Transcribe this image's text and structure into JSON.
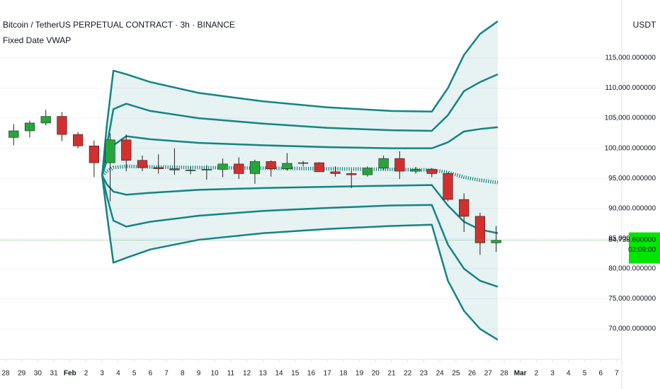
{
  "chart_data": {
    "type": "candlestick",
    "title": "Bitcoin / TetherUS PERPETUAL CONTRACT · 3h · BINANCE",
    "subtitle": "Fixed Date VWAP",
    "currency": "USDT",
    "up_color": "#26a63a",
    "down_color": "#d32f2f",
    "band_color": "#138484",
    "grid": true,
    "xlim": [
      -0.35,
      38.31
    ],
    "ylim": [
      67070,
      124630
    ],
    "xticks": [
      {
        "value": 0,
        "label": "28"
      },
      {
        "value": 1,
        "label": "29"
      },
      {
        "value": 2,
        "label": "30"
      },
      {
        "value": 3,
        "label": "31"
      },
      {
        "value": 4,
        "label": "Feb"
      },
      {
        "value": 5,
        "label": "2"
      },
      {
        "value": 6,
        "label": "3"
      },
      {
        "value": 7,
        "label": "4"
      },
      {
        "value": 8,
        "label": "5"
      },
      {
        "value": 9,
        "label": "6"
      },
      {
        "value": 10,
        "label": "7"
      },
      {
        "value": 11,
        "label": "8"
      },
      {
        "value": 12,
        "label": "9"
      },
      {
        "value": 13,
        "label": "10"
      },
      {
        "value": 14,
        "label": "11"
      },
      {
        "value": 15,
        "label": "12"
      },
      {
        "value": 16,
        "label": "13"
      },
      {
        "value": 17,
        "label": "14"
      },
      {
        "value": 18,
        "label": "15"
      },
      {
        "value": 19,
        "label": "16"
      },
      {
        "value": 20,
        "label": "17"
      },
      {
        "value": 21,
        "label": "18"
      },
      {
        "value": 22,
        "label": "19"
      },
      {
        "value": 23,
        "label": "20"
      },
      {
        "value": 24,
        "label": "21"
      },
      {
        "value": 25,
        "label": "22"
      },
      {
        "value": 26,
        "label": "23"
      },
      {
        "value": 27,
        "label": "24"
      },
      {
        "value": 28,
        "label": "25"
      },
      {
        "value": 29,
        "label": "26"
      },
      {
        "value": 30,
        "label": "27"
      },
      {
        "value": 31,
        "label": "28"
      },
      {
        "value": 32,
        "label": "Mar"
      },
      {
        "value": 33,
        "label": "2"
      },
      {
        "value": 34,
        "label": "3"
      },
      {
        "value": 35,
        "label": "4"
      },
      {
        "value": 36,
        "label": "5"
      },
      {
        "value": 37,
        "label": "6"
      },
      {
        "value": 38,
        "label": "7"
      }
    ],
    "yticks": [
      {
        "value": 70000,
        "label": "70,000.000000"
      },
      {
        "value": 75000,
        "label": "75,000.000000"
      },
      {
        "value": 80000,
        "label": "80,000.000000"
      },
      {
        "value": 85000,
        "label": "85,000.000000"
      },
      {
        "value": 90000,
        "label": "90,000.000000"
      },
      {
        "value": 95000,
        "label": "95,000.000000"
      },
      {
        "value": 100000,
        "label": "100,000.000000"
      },
      {
        "value": 105000,
        "label": "105,000.000000"
      },
      {
        "value": 110000,
        "label": "110,000.000000"
      },
      {
        "value": 115000,
        "label": "115,000.000000"
      }
    ],
    "last_price": {
      "value": 84738.6,
      "label": "84,738.600000"
    },
    "countdown": "02:09:00",
    "candles": {
      "x": [
        0.5,
        1.5,
        2.5,
        3.5,
        4.5,
        5.5,
        6.5,
        7.5,
        8.5,
        9.5,
        10.5,
        11.5,
        12.5,
        13.5,
        14.5,
        15.5,
        16.5,
        17.5,
        18.5,
        19.5,
        20.5,
        21.5,
        22.5,
        23.5,
        24.5,
        25.5,
        26.5,
        27.5,
        28.5,
        29.5,
        30.5
      ],
      "open": [
        101800,
        102900,
        104200,
        105300,
        102300,
        100400,
        97600,
        101400,
        98000,
        96800,
        96600,
        96400,
        96400,
        96500,
        97400,
        95800,
        97800,
        96600,
        97500,
        97600,
        96100,
        95800,
        95600,
        96700,
        98300,
        96200,
        96500,
        95800,
        91500,
        88700,
        84300
      ],
      "high": [
        104000,
        104600,
        106400,
        106000,
        102700,
        101300,
        102500,
        102300,
        98800,
        99000,
        100000,
        96900,
        97200,
        98300,
        98500,
        98100,
        98000,
        99200,
        97900,
        97700,
        97000,
        96300,
        97000,
        98800,
        99500,
        96900,
        96700,
        96000,
        92500,
        89300,
        87100
      ],
      "low": [
        100500,
        101800,
        103800,
        101200,
        100000,
        95200,
        91200,
        96200,
        96200,
        95800,
        95600,
        95700,
        94800,
        95200,
        94900,
        94100,
        95300,
        96300,
        97000,
        96100,
        95300,
        93400,
        95300,
        96400,
        94900,
        95800,
        95200,
        91200,
        86100,
        82300,
        82800
      ],
      "close": [
        102900,
        104200,
        105300,
        102300,
        100400,
        97600,
        101400,
        98000,
        96800,
        96600,
        96400,
        96400,
        96500,
        97400,
        95800,
        97800,
        96600,
        97500,
        97600,
        96100,
        95800,
        95600,
        96700,
        98300,
        96200,
        96500,
        95800,
        91500,
        88700,
        84300,
        84738.6
      ]
    },
    "series": [
      {
        "x": [
          6.0,
          6.3,
          6.7,
          7.5,
          9,
          12,
          16,
          20,
          24,
          26.5,
          27.5,
          28.5,
          29.5,
          30.6
        ],
        "values": [
          95500,
          104000,
          112900,
          112300,
          111000,
          109200,
          107800,
          106800,
          106200,
          106100,
          110000,
          115500,
          119000,
          121100
        ]
      },
      {
        "x": [
          6.0,
          6.3,
          6.7,
          7.5,
          9,
          12,
          16,
          20,
          24,
          26.5,
          27.5,
          28.5,
          29.5,
          30.6
        ],
        "values": [
          95500,
          100500,
          106500,
          107400,
          106200,
          105000,
          104100,
          103400,
          103000,
          102900,
          105500,
          109500,
          111000,
          112300
        ]
      },
      {
        "x": [
          6.0,
          6.3,
          6.7,
          7.5,
          9,
          12,
          16,
          20,
          24,
          26.5,
          27.5,
          28.5,
          29.5,
          30.6
        ],
        "values": [
          95500,
          98000,
          100500,
          102000,
          101500,
          100900,
          100500,
          100200,
          100000,
          100000,
          101000,
          102800,
          103200,
          103500
        ]
      },
      {
        "x": [
          6.0,
          6.3,
          6.7,
          7.5,
          9,
          12,
          16,
          20,
          24,
          26.5,
          27.5,
          28.5,
          29.5,
          30.6
        ],
        "values": [
          95500,
          96200,
          96800,
          97000,
          96900,
          96800,
          96700,
          96600,
          96500,
          96400,
          96000,
          95200,
          94700,
          94300
        ],
        "dotted": true
      },
      {
        "x": [
          6.0,
          6.3,
          6.7,
          7.5,
          9,
          12,
          16,
          20,
          24,
          26.5,
          27.5,
          28.5,
          29.5,
          30.6
        ],
        "values": [
          95500,
          94000,
          92800,
          92300,
          92600,
          93100,
          93400,
          93600,
          93800,
          93900,
          90500,
          87800,
          86500,
          85900
        ]
      },
      {
        "x": [
          6.0,
          6.3,
          6.7,
          7.5,
          9,
          12,
          16,
          20,
          24,
          26.5,
          27.5,
          28.5,
          29.5,
          30.6
        ],
        "values": [
          95500,
          92000,
          88000,
          87000,
          87800,
          88800,
          89600,
          90100,
          90500,
          90600,
          84000,
          80000,
          78000,
          77000
        ]
      },
      {
        "x": [
          6.0,
          6.3,
          6.7,
          7.5,
          9,
          12,
          16,
          20,
          24,
          26.5,
          27.5,
          28.5,
          29.5,
          30.6
        ],
        "values": [
          95500,
          89000,
          81000,
          81800,
          83200,
          84800,
          85900,
          86600,
          87100,
          87300,
          78000,
          73000,
          70000,
          68200
        ]
      }
    ]
  }
}
